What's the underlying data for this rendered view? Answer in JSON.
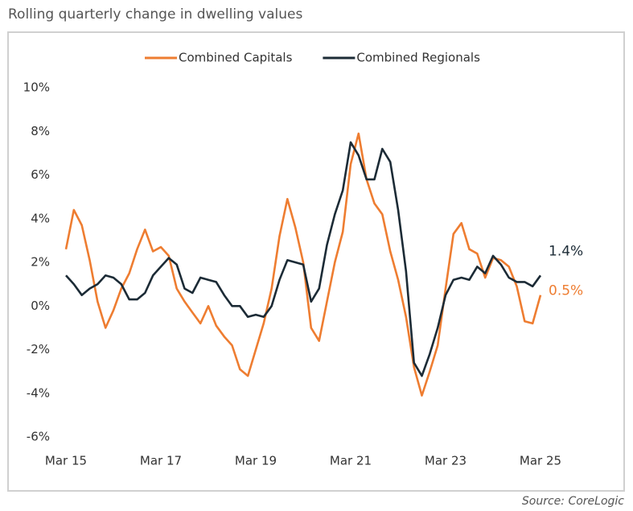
{
  "chart_data": {
    "type": "line",
    "title": "Rolling quarterly change in dwelling values",
    "source": "Source: CoreLogic",
    "categories": [
      "Mar 15",
      null,
      null,
      null,
      null,
      null,
      null,
      null,
      null,
      null,
      null,
      null,
      "Mar 17",
      null,
      null,
      null,
      null,
      null,
      null,
      null,
      null,
      null,
      null,
      null,
      "Mar 19",
      null,
      null,
      null,
      null,
      null,
      null,
      null,
      null,
      null,
      null,
      null,
      "Mar 21",
      null,
      null,
      null,
      null,
      null,
      null,
      null,
      null,
      null,
      null,
      null,
      "Mar 23",
      null,
      null,
      null,
      null,
      null,
      null,
      null,
      null,
      null,
      null,
      null,
      "Mar 25"
    ],
    "series": [
      {
        "name": "Combined Capitals",
        "color": "#ee7d31",
        "end_label": "0.5%",
        "values": [
          2.6,
          4.4,
          3.7,
          2.1,
          0.2,
          -1.0,
          -0.2,
          0.8,
          1.5,
          2.6,
          3.5,
          2.5,
          2.7,
          2.3,
          0.8,
          0.2,
          -0.3,
          -0.8,
          0.0,
          -0.9,
          -1.4,
          -1.8,
          -2.9,
          -3.2,
          -2.0,
          -0.8,
          0.8,
          3.2,
          4.9,
          3.6,
          2.0,
          -1.0,
          -1.6,
          0.2,
          2.0,
          3.4,
          6.5,
          7.9,
          5.8,
          4.7,
          4.2,
          2.5,
          1.2,
          -0.5,
          -2.8,
          -4.1,
          -3.0,
          -1.8,
          0.8,
          3.3,
          3.8,
          2.6,
          2.4,
          1.3,
          2.2,
          2.1,
          1.8,
          0.9,
          -0.7,
          -0.8,
          0.5
        ]
      },
      {
        "name": "Combined Regionals",
        "color": "#1c2b36",
        "end_label": "1.4%",
        "values": [
          1.4,
          1.0,
          0.5,
          0.8,
          1.0,
          1.4,
          1.3,
          1.0,
          0.3,
          0.3,
          0.6,
          1.4,
          1.8,
          2.2,
          1.9,
          0.8,
          0.6,
          1.3,
          1.2,
          1.1,
          0.5,
          0.0,
          0.0,
          -0.5,
          -0.4,
          -0.5,
          0.0,
          1.2,
          2.1,
          2.0,
          1.9,
          0.2,
          0.8,
          2.8,
          4.2,
          5.3,
          7.5,
          6.9,
          5.8,
          5.8,
          7.2,
          6.6,
          4.4,
          1.6,
          -2.6,
          -3.2,
          -2.2,
          -1.0,
          0.5,
          1.2,
          1.3,
          1.2,
          1.8,
          1.5,
          2.3,
          1.9,
          1.3,
          1.1,
          1.1,
          0.9,
          1.4
        ]
      }
    ],
    "ylim": [
      -6,
      10
    ],
    "yticks": [
      {
        "value": -6,
        "label": "-6%"
      },
      {
        "value": -4,
        "label": "-4%"
      },
      {
        "value": -2,
        "label": "-2%"
      },
      {
        "value": 0,
        "label": "0%"
      },
      {
        "value": 2,
        "label": "2%"
      },
      {
        "value": 4,
        "label": "4%"
      },
      {
        "value": 6,
        "label": "6%"
      },
      {
        "value": 8,
        "label": "8%"
      },
      {
        "value": 10,
        "label": "10%"
      }
    ],
    "grid": false,
    "legend": "top"
  }
}
